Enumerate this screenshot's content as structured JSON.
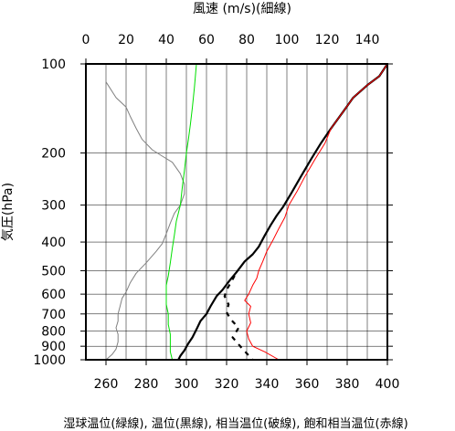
{
  "chart_data": {
    "type": "line",
    "top_axis_label": "風速 (m/s)(細線)",
    "bottom_axis_label": "湿球温位(緑線), 温位(黒線), 相当温位(破線), 飽和相当温位(赤線)",
    "ylabel": "気圧(hPa)",
    "y_scale": "log",
    "y_reversed": true,
    "ylim": [
      1000,
      100
    ],
    "y_ticks": [
      100,
      200,
      300,
      400,
      500,
      600,
      700,
      800,
      900,
      1000
    ],
    "x_bottom_lim": [
      250,
      400
    ],
    "x_bottom_ticks": [
      260,
      280,
      300,
      320,
      340,
      360,
      380,
      400
    ],
    "x_top_lim": [
      0,
      150
    ],
    "x_top_ticks": [
      0,
      20,
      40,
      60,
      80,
      100,
      120,
      140
    ],
    "grid": true,
    "series": [
      {
        "axis": "top",
        "color": "#808080",
        "style": "thin",
        "points": [
          [
            10,
            100
          ],
          [
            10,
            115
          ],
          [
            15,
            130
          ],
          [
            20,
            140
          ],
          [
            22,
            150
          ],
          [
            25,
            165
          ],
          [
            28,
            180
          ],
          [
            33,
            195
          ],
          [
            38,
            205
          ],
          [
            43,
            215
          ],
          [
            47,
            235
          ],
          [
            49,
            255
          ],
          [
            49,
            275
          ],
          [
            47,
            300
          ],
          [
            44,
            320
          ],
          [
            42,
            345
          ],
          [
            40,
            375
          ],
          [
            38,
            405
          ],
          [
            35,
            430
          ],
          [
            30,
            470
          ],
          [
            25,
            510
          ],
          [
            22,
            550
          ],
          [
            20,
            590
          ],
          [
            18,
            620
          ],
          [
            17,
            660
          ],
          [
            16,
            700
          ],
          [
            16,
            740
          ],
          [
            15,
            780
          ],
          [
            16,
            820
          ],
          [
            16,
            870
          ],
          [
            15,
            920
          ],
          [
            13,
            960
          ],
          [
            10,
            1000
          ]
        ]
      },
      {
        "axis": "bottom",
        "color": "#00e000",
        "style": "thin",
        "points": [
          [
            305,
            100
          ],
          [
            304,
            120
          ],
          [
            303,
            140
          ],
          [
            302,
            160
          ],
          [
            301,
            180
          ],
          [
            300,
            200
          ],
          [
            299,
            230
          ],
          [
            298,
            260
          ],
          [
            297,
            300
          ],
          [
            295,
            340
          ],
          [
            294,
            380
          ],
          [
            293,
            420
          ],
          [
            292,
            470
          ],
          [
            291,
            520
          ],
          [
            290,
            560
          ],
          [
            290,
            600
          ],
          [
            290,
            650
          ],
          [
            291,
            700
          ],
          [
            291,
            760
          ],
          [
            292,
            820
          ],
          [
            292,
            880
          ],
          [
            292,
            940
          ],
          [
            293,
            1000
          ]
        ]
      },
      {
        "axis": "bottom",
        "color": "#000000",
        "style": "thick",
        "points": [
          [
            400,
            100
          ],
          [
            396,
            110
          ],
          [
            390,
            118
          ],
          [
            383,
            130
          ],
          [
            378,
            145
          ],
          [
            372,
            165
          ],
          [
            367,
            185
          ],
          [
            362,
            210
          ],
          [
            357,
            240
          ],
          [
            352,
            275
          ],
          [
            348,
            305
          ],
          [
            345,
            325
          ],
          [
            342,
            350
          ],
          [
            339,
            380
          ],
          [
            336,
            415
          ],
          [
            333,
            440
          ],
          [
            329,
            465
          ],
          [
            325,
            505
          ],
          [
            321,
            545
          ],
          [
            318,
            580
          ],
          [
            315,
            610
          ],
          [
            312,
            660
          ],
          [
            310,
            700
          ],
          [
            307,
            740
          ],
          [
            305,
            790
          ],
          [
            303,
            840
          ],
          [
            301,
            880
          ],
          [
            299,
            930
          ],
          [
            297,
            970
          ],
          [
            296,
            1000
          ]
        ]
      },
      {
        "axis": "bottom",
        "color": "#000000",
        "style": "dashed",
        "points": [
          [
            324,
            520
          ],
          [
            322,
            550
          ],
          [
            320,
            580
          ],
          [
            319,
            610
          ],
          [
            321,
            650
          ],
          [
            320,
            690
          ],
          [
            322,
            730
          ],
          [
            326,
            780
          ],
          [
            323,
            840
          ],
          [
            328,
            920
          ],
          [
            333,
            1000
          ]
        ]
      },
      {
        "axis": "bottom",
        "color": "#ff0000",
        "style": "thin",
        "points": [
          [
            400,
            100
          ],
          [
            396,
            110
          ],
          [
            390,
            118
          ],
          [
            383,
            130
          ],
          [
            378,
            145
          ],
          [
            372,
            165
          ],
          [
            369,
            185
          ],
          [
            364,
            210
          ],
          [
            359,
            240
          ],
          [
            355,
            270
          ],
          [
            351,
            300
          ],
          [
            349,
            330
          ],
          [
            346,
            360
          ],
          [
            343,
            395
          ],
          [
            340,
            430
          ],
          [
            338,
            465
          ],
          [
            336,
            500
          ],
          [
            335,
            530
          ],
          [
            333,
            560
          ],
          [
            331,
            600
          ],
          [
            329,
            630
          ],
          [
            332,
            660
          ],
          [
            331,
            700
          ],
          [
            332,
            750
          ],
          [
            330,
            800
          ],
          [
            331,
            850
          ],
          [
            333,
            900
          ],
          [
            339,
            940
          ],
          [
            346,
            1000
          ]
        ]
      }
    ]
  }
}
